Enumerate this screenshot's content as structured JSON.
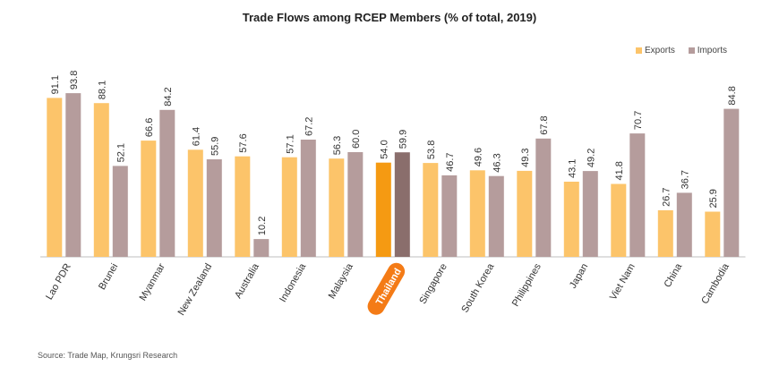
{
  "chart_data": {
    "type": "bar",
    "title": "Trade Flows among RCEP Members (% of total, 2019)",
    "categories": [
      "Lao PDR",
      "Brunei",
      "Myanmar",
      "New Zealand",
      "Australia",
      "Indonesia",
      "Malaysia",
      "Thailand",
      "Singapore",
      "South Korea",
      "Philippines",
      "Japan",
      "Viet Nam",
      "China",
      "Cambodia"
    ],
    "series": [
      {
        "name": "Exports",
        "values": [
          91.1,
          88.1,
          66.6,
          61.4,
          57.6,
          57.1,
          56.3,
          54.0,
          53.8,
          49.6,
          49.3,
          43.1,
          41.8,
          26.7,
          25.9
        ],
        "labels": [
          "91.1",
          "88.1",
          "66.6",
          "61.4",
          "57.6",
          "57.1",
          "56.3",
          "54.0",
          "53.8",
          "49.6",
          "49.3",
          "43.1",
          "41.8",
          "26.7",
          "25.9"
        ]
      },
      {
        "name": "Imports",
        "values": [
          93.8,
          52.1,
          84.2,
          55.9,
          10.2,
          67.2,
          60.0,
          59.9,
          46.7,
          46.3,
          67.8,
          49.2,
          70.7,
          36.7,
          84.8
        ],
        "labels": [
          "93.8",
          "52.1",
          "84.2",
          "55.9",
          "10.2",
          "67.2",
          "60.0",
          "59.9",
          "46.7",
          "46.3",
          "67.8",
          "49.2",
          "70.7",
          "36.7",
          "84.8"
        ]
      }
    ],
    "highlight_category": "Thailand",
    "ylim": [
      0,
      100
    ],
    "legend_position": "top-right",
    "grid": false,
    "colors": {
      "exports": "#fcc46a",
      "imports": "#b59c9c",
      "exports_highlight": "#f59a12",
      "imports_highlight": "#8a6e6c",
      "highlight_pill": "#f47b16"
    }
  },
  "source": "Source: Trade Map, Krungsri Research"
}
